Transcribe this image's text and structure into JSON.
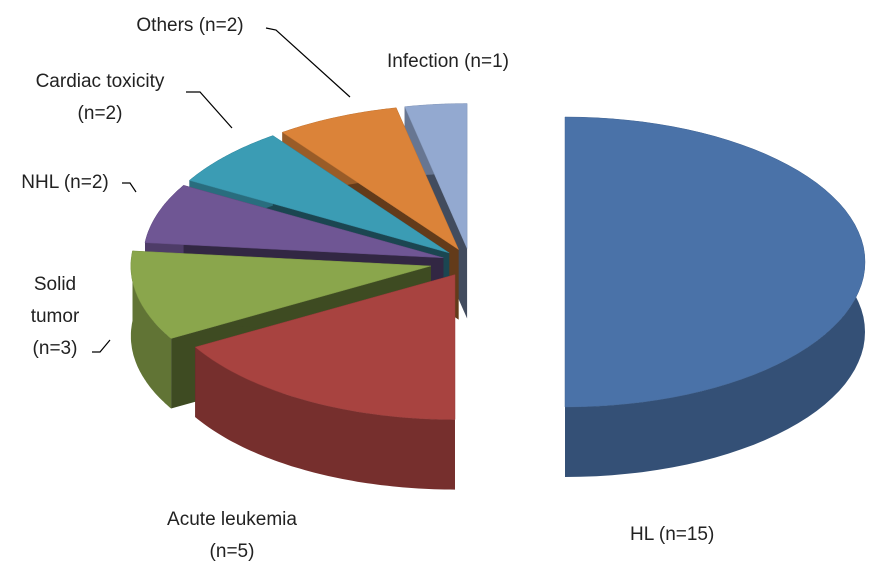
{
  "chart_data": {
    "type": "pie3d",
    "categories": [
      "HL (n=15)",
      "Acute leukemia\n(n=5)",
      "Solid\ntumor\n(n=3)",
      "NHL (n=2)",
      "Cardiac toxicity\n(n=2)",
      "Others (n=2)",
      "Infection (n=1)"
    ],
    "values": [
      15,
      5,
      3,
      2,
      2,
      2,
      1
    ],
    "colors": [
      "#4a72a8",
      "#a84340",
      "#8aa64c",
      "#6f5694",
      "#3b9cb4",
      "#db8339",
      "#93a9d0"
    ]
  }
}
